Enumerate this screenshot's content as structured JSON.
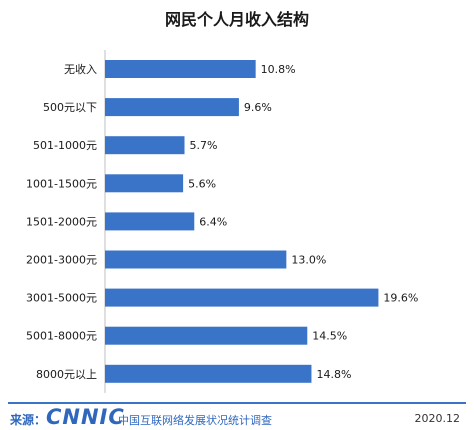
{
  "chart_data": {
    "type": "bar",
    "orientation": "horizontal",
    "title": "网民个人月收入结构",
    "categories": [
      "无收入",
      "500元以下",
      "501-1000元",
      "1001-1500元",
      "1501-2000元",
      "2001-3000元",
      "3001-5000元",
      "5001-8000元",
      "8000元以上"
    ],
    "values": [
      10.8,
      9.6,
      5.7,
      5.6,
      6.4,
      13.0,
      19.6,
      14.5,
      14.8
    ],
    "value_labels": [
      "10.8%",
      "9.6%",
      "5.7%",
      "5.6%",
      "6.4%",
      "13.0%",
      "19.6%",
      "14.5%",
      "14.8%"
    ],
    "unit": "%",
    "xlim": [
      0,
      20
    ],
    "grid": false,
    "bar_color": "#3a74c9"
  },
  "footer": {
    "source_label": "来源：",
    "logo_text": "CNNIC",
    "org_name": "中国互联网络发展状况统计调查",
    "date": "2020.12"
  }
}
